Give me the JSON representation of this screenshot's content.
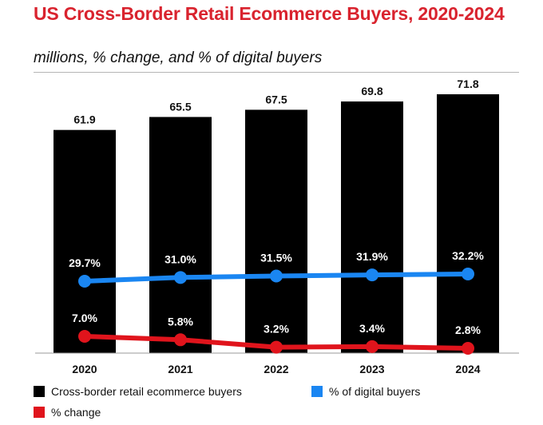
{
  "title": "US Cross-Border Retail Ecommerce Buyers, 2020-2024",
  "subtitle": "millions, % change, and % of digital buyers",
  "colors": {
    "title": "#d9232e",
    "bars": "#000000",
    "digital": "#1a86f2",
    "change": "#e0141c"
  },
  "legend": {
    "bars": "Cross-border retail ecommerce buyers",
    "digital": "% of digital buyers",
    "change": "% change"
  },
  "chart_data": {
    "type": "bar",
    "categories": [
      "2020",
      "2021",
      "2022",
      "2023",
      "2024"
    ],
    "series": [
      {
        "name": "Cross-border retail ecommerce buyers",
        "kind": "bar",
        "values": [
          61.9,
          65.5,
          67.5,
          69.8,
          71.8
        ],
        "labels": [
          "61.9",
          "65.5",
          "67.5",
          "69.8",
          "71.8"
        ]
      },
      {
        "name": "% of digital buyers",
        "kind": "line",
        "values": [
          29.7,
          31.0,
          31.5,
          31.9,
          32.2
        ],
        "labels": [
          "29.7%",
          "31.0%",
          "31.5%",
          "31.9%",
          "32.2%"
        ]
      },
      {
        "name": "% change",
        "kind": "line",
        "values": [
          7.0,
          5.8,
          3.2,
          3.4,
          2.8
        ],
        "labels": [
          "7.0%",
          "5.8%",
          "3.2%",
          "3.4%",
          "2.8%"
        ]
      }
    ],
    "grid": false,
    "legend_position": "bottom"
  }
}
